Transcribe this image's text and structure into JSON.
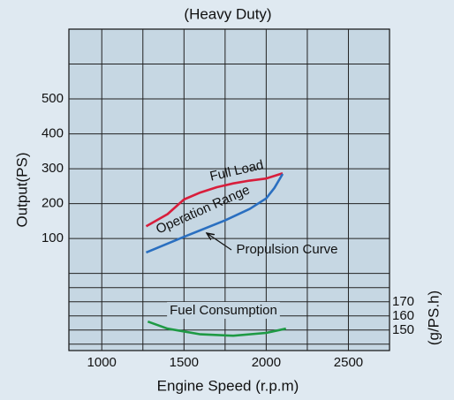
{
  "chart_data": {
    "type": "line",
    "title": "(Heavy Duty)",
    "x_label": "Engine Speed (r.p.m)",
    "y_label": "Output(PS)",
    "y2_label": "(g/PS.h)",
    "xlim": [
      800,
      2750
    ],
    "xticks": [
      1000,
      1500,
      2000,
      2500
    ],
    "xgrid": [
      1000,
      1250,
      1500,
      1750,
      2000,
      2250,
      2500
    ],
    "ylim": [
      -221,
      700
    ],
    "yticks": [
      100,
      200,
      300,
      400,
      500
    ],
    "ygrid": [
      0,
      100,
      200,
      300,
      400,
      500,
      600
    ],
    "y2lim": [
      135.5,
      363
    ],
    "y2ticks": [
      150,
      160,
      170
    ],
    "y2grid": [
      140,
      150,
      160,
      170,
      180
    ],
    "grid": true,
    "series": [
      {
        "name": "Full Load",
        "color": "#d81e3c",
        "x": [
          1270,
          1400,
          1500,
          1600,
          1700,
          1800,
          1900,
          2000,
          2100
        ],
        "values": [
          135,
          170,
          212,
          232,
          247,
          258,
          266,
          272,
          287
        ]
      },
      {
        "name": "Propulsion Curve",
        "color": "#2a6fc0",
        "x": [
          1270,
          1500,
          1750,
          1900,
          2000,
          2050,
          2100
        ],
        "values": [
          60,
          105,
          152,
          185,
          215,
          245,
          285
        ]
      },
      {
        "name": "Fuel Consumption",
        "color": "#1e9a44",
        "x": [
          1280,
          1400,
          1600,
          1800,
          2000,
          2120
        ],
        "values": [
          156,
          151,
          147,
          146,
          148,
          151
        ],
        "axis": "y2"
      }
    ],
    "annotations": [
      "Operation Range"
    ]
  }
}
